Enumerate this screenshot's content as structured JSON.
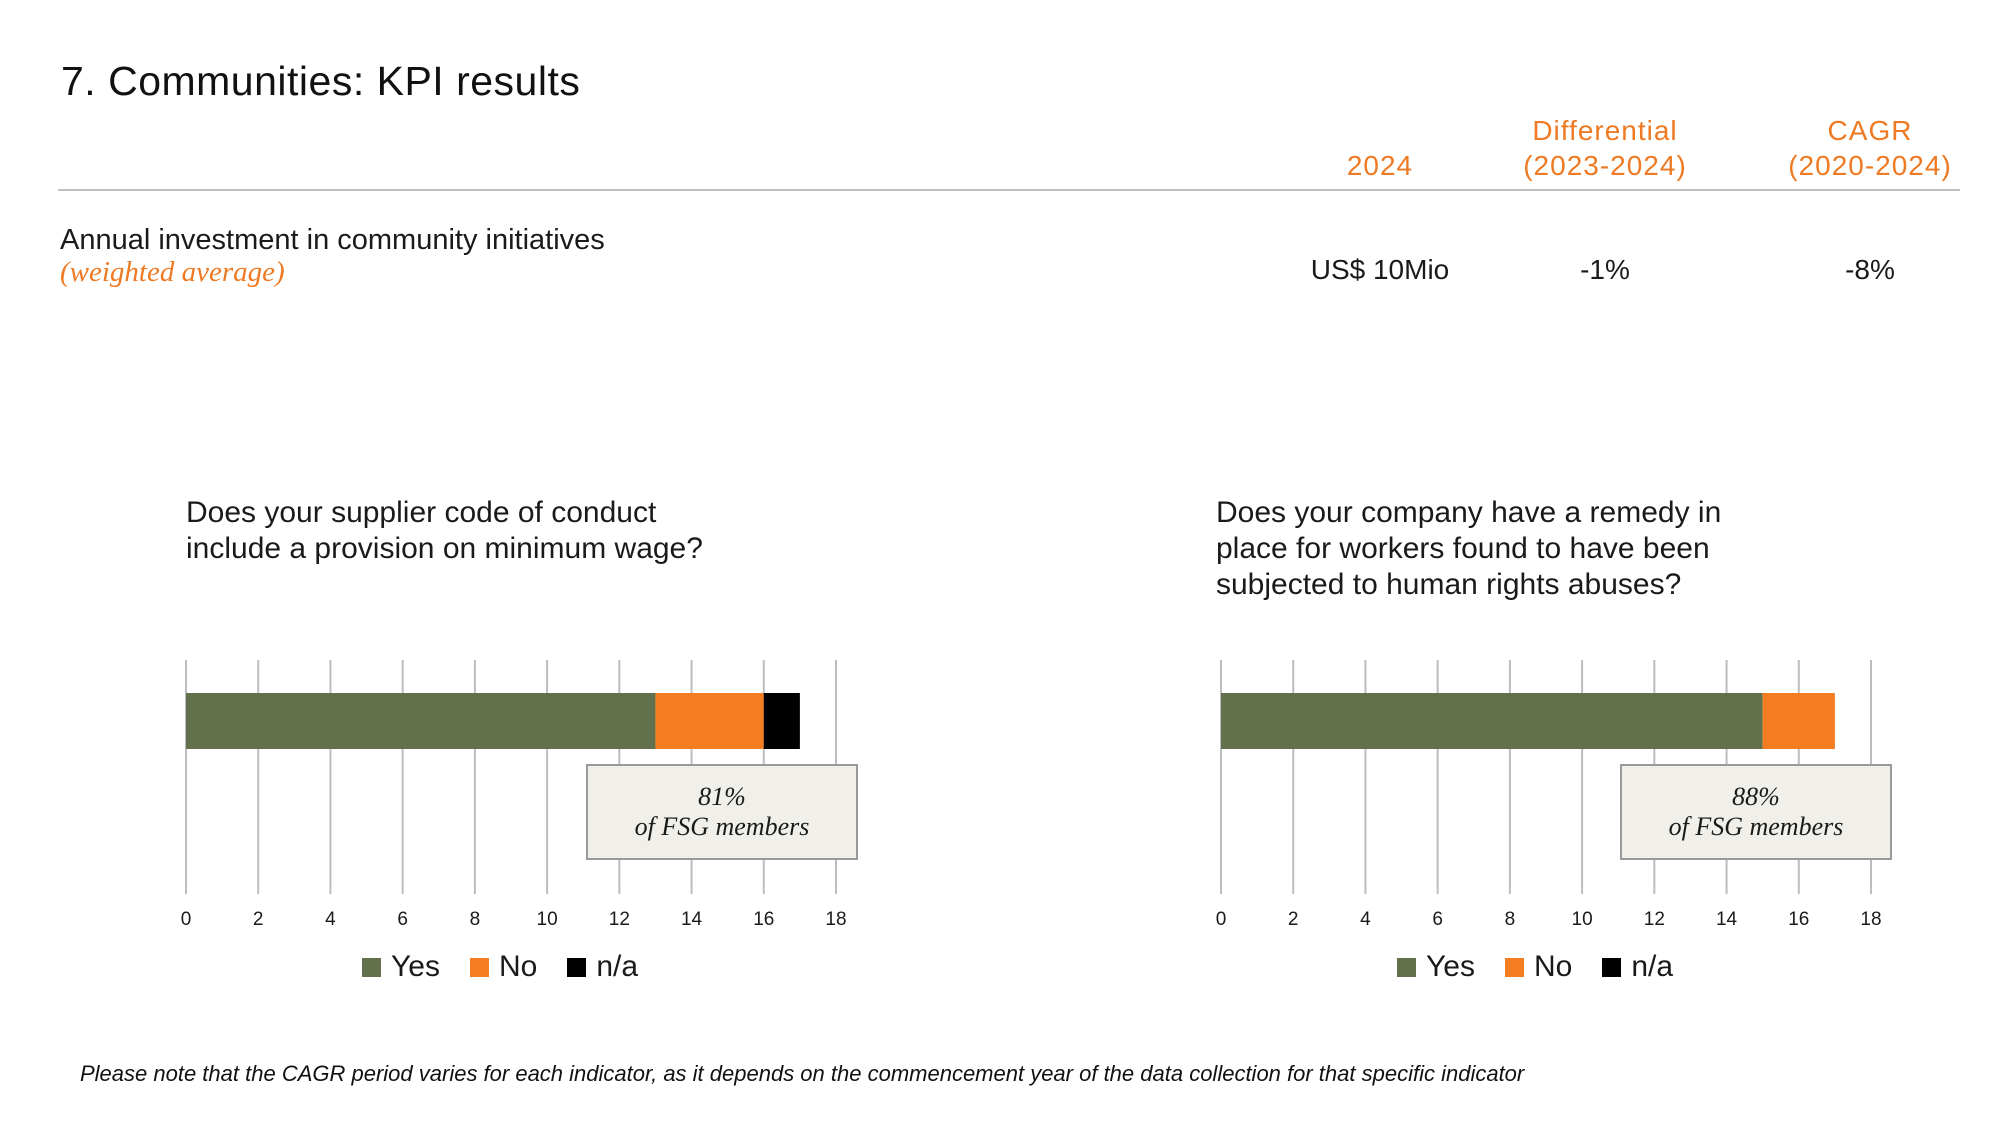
{
  "title": "7. Communities: KPI results",
  "table": {
    "columns": [
      {
        "line1": "",
        "line2": "2024"
      },
      {
        "line1": "Differential",
        "line2": "(2023-2024)"
      },
      {
        "line1": "CAGR",
        "line2": "(2020-2024)"
      }
    ],
    "rows": [
      {
        "label": "Annual investment in community initiatives",
        "sublabel": "(weighted average)",
        "values": [
          "US$ 10Mio",
          "-1%",
          "-8%"
        ]
      }
    ]
  },
  "colors": {
    "yes": "#62704b",
    "no": "#f47d22",
    "na": "#000000",
    "accent": "#ee7a23",
    "grid": "#bdbdbd"
  },
  "chart_data": [
    {
      "type": "bar",
      "orientation": "horizontal",
      "stacked": true,
      "title": "Does your supplier code of conduct include a provision on minimum wage?",
      "title_lines": [
        "Does your supplier code of conduct",
        "include a provision on minimum wage?"
      ],
      "series": [
        {
          "name": "Yes",
          "values": [
            13
          ]
        },
        {
          "name": "No",
          "values": [
            3
          ]
        },
        {
          "name": "n/a",
          "values": [
            1
          ]
        }
      ],
      "xlim": [
        0,
        18
      ],
      "ticks": [
        "0",
        "2",
        "4",
        "6",
        "8",
        "10",
        "12",
        "14",
        "16",
        "18"
      ],
      "grid": true,
      "legend": "bottom",
      "annotation": {
        "line1": "81%",
        "line2": "of FSG members"
      }
    },
    {
      "type": "bar",
      "orientation": "horizontal",
      "stacked": true,
      "title": "Does your company have a remedy in place for workers found to have been subjected to human rights abuses?",
      "title_lines": [
        "Does your company have a remedy in",
        "place for workers found to have been",
        "subjected to human rights abuses?"
      ],
      "series": [
        {
          "name": "Yes",
          "values": [
            15
          ]
        },
        {
          "name": "No",
          "values": [
            2
          ]
        },
        {
          "name": "n/a",
          "values": [
            0
          ]
        }
      ],
      "xlim": [
        0,
        18
      ],
      "ticks": [
        "0",
        "2",
        "4",
        "6",
        "8",
        "10",
        "12",
        "14",
        "16",
        "18"
      ],
      "grid": true,
      "legend": "bottom",
      "annotation": {
        "line1": "88%",
        "line2": "of FSG members"
      }
    }
  ],
  "footnote": "Please note that the CAGR period varies for each indicator, as it depends on the commencement year of the data collection for that specific indicator"
}
